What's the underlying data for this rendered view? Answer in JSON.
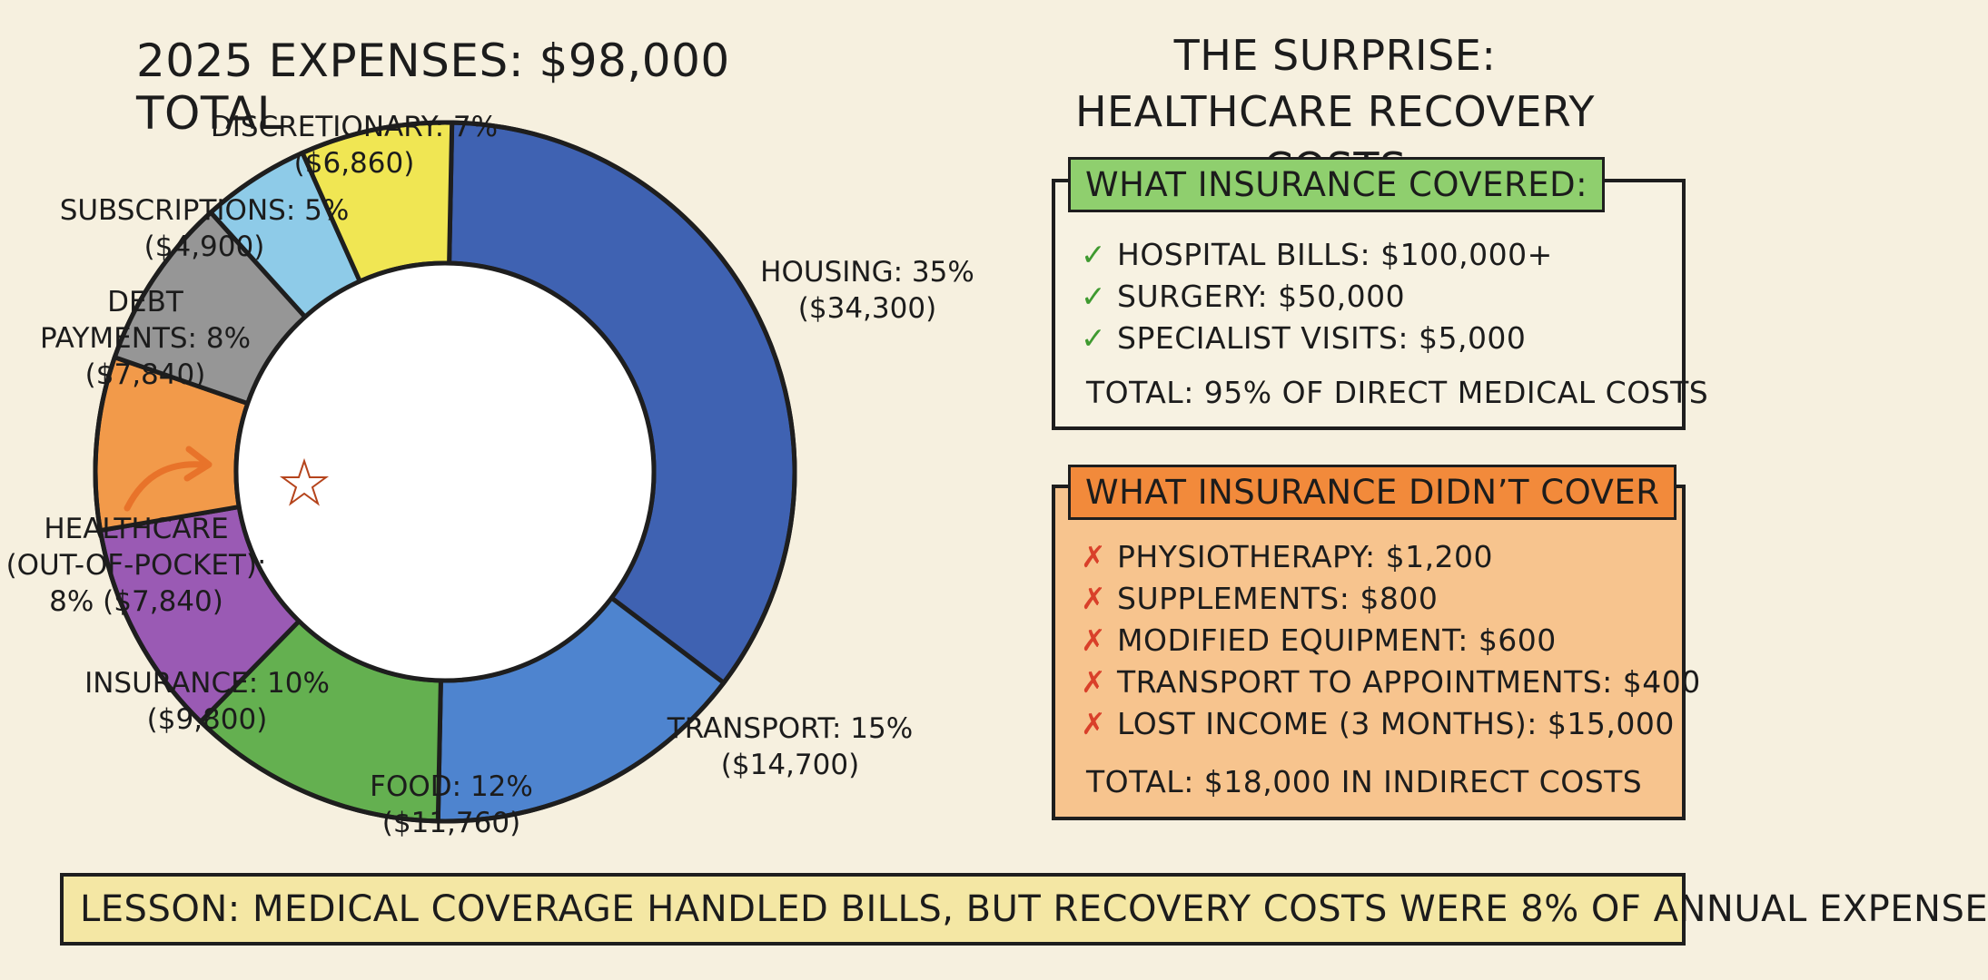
{
  "chart_data": {
    "type": "donut",
    "title": "2025 Expenses: $98,000 Total",
    "total": 98000,
    "slices": [
      {
        "name": "Housing",
        "percent": 35,
        "amount": "$34,300",
        "label": "Housing: 35%",
        "amount_label": "($34,300)",
        "color": "#3f62b2"
      },
      {
        "name": "Transport",
        "percent": 15,
        "amount": "$14,700",
        "label": "Transport: 15%",
        "amount_label": "($14,700)",
        "color": "#4e84cf"
      },
      {
        "name": "Food",
        "percent": 12,
        "amount": "$11,760",
        "label": "Food: 12%",
        "amount_label": "($11,760)",
        "color": "#64b050"
      },
      {
        "name": "Insurance",
        "percent": 10,
        "amount": "$9,800",
        "label": "Insurance: 10%",
        "amount_label": "($9,800)",
        "color": "#9a5ab4"
      },
      {
        "name": "Healthcare (Out-of-Pocket)",
        "percent": 8,
        "amount": "$7,840",
        "label_lines": [
          "Healthcare",
          "(Out-of-Pocket):",
          "8% ($7,840)"
        ],
        "color": "#f29a4a",
        "highlighted": true
      },
      {
        "name": "Debt Payments",
        "percent": 8,
        "amount": "$7,840",
        "label_lines": [
          "Debt",
          "Payments: 8%",
          "($7,840)"
        ],
        "color": "#969696"
      },
      {
        "name": "Subscriptions",
        "percent": 5,
        "amount": "$4,900",
        "label": "Subscriptions: 5%",
        "amount_label": "($4,900)",
        "color": "#8ecbe8"
      },
      {
        "name": "Discretionary",
        "percent": 7,
        "amount": "$6,860",
        "label": "Discretionary: 7%",
        "amount_label": "($6,860)",
        "color": "#f0e653"
      }
    ]
  },
  "right_panel": {
    "title_line1": "The Surprise:",
    "title_line2": "Healthcare Recovery Costs",
    "covered": {
      "header": "What Insurance Covered:",
      "items": [
        "Hospital Bills: $100,000+",
        "Surgery: $50,000",
        "Specialist Visits: $5,000"
      ],
      "total": "Total: 95% of Direct Medical Costs"
    },
    "not_covered": {
      "header": "What Insurance Didn’t Cover",
      "items": [
        "Physiotherapy: $1,200",
        "Supplements: $800",
        "Modified Equipment: $600",
        "Transport to Appointments: $400",
        "Lost Income (3 Months): $15,000"
      ],
      "total": "Total: $18,000 in Indirect Costs"
    }
  },
  "lesson": "Lesson: Medical Coverage Handled Bills, But Recovery Costs Were 8% of Annual Expense",
  "icons": {
    "check": "✓",
    "cross": "✗"
  }
}
